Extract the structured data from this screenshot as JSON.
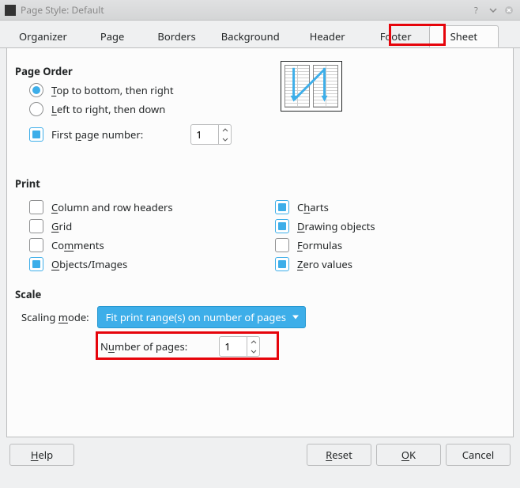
{
  "window": {
    "title": "Page Style: Default"
  },
  "tabs": [
    "Organizer",
    "Page",
    "Borders",
    "Background",
    "Header",
    "Footer",
    "Sheet"
  ],
  "active_tab": "Sheet",
  "page_order": {
    "title": "Page Order",
    "opt_tb": "op to bottom, then right",
    "opt_tb_prefix": "T",
    "opt_lr": "eft to right, then down",
    "opt_lr_prefix": "L",
    "first_page_lbl_prefix": "First ",
    "first_page_u": "p",
    "first_page_lbl_suffix": "age number:",
    "first_page_value": "1",
    "selected": "tb",
    "first_page_checked": true
  },
  "print": {
    "title": "Print",
    "left": [
      {
        "u": "C",
        "rest": "olumn and row headers",
        "checked": false,
        "name": "columns-headers"
      },
      {
        "u": "G",
        "rest": "rid",
        "checked": false,
        "name": "grid"
      },
      {
        "pre": "Co",
        "u": "m",
        "rest": "ments",
        "checked": false,
        "name": "comments"
      },
      {
        "u": "O",
        "rest": "bjects/Images",
        "checked": true,
        "name": "objects-images"
      }
    ],
    "right": [
      {
        "pre": "C",
        "u": "h",
        "rest": "arts",
        "checked": true,
        "name": "charts"
      },
      {
        "u": "D",
        "rest": "rawing objects",
        "checked": true,
        "name": "drawing-objects"
      },
      {
        "u": "F",
        "rest": "ormulas",
        "checked": false,
        "name": "formulas"
      },
      {
        "u": "Z",
        "rest": "ero values",
        "checked": true,
        "name": "zero-values"
      }
    ]
  },
  "scale": {
    "title": "Scale",
    "mode_lbl_pre": "Scaling ",
    "mode_u": "m",
    "mode_lbl_post": "ode:",
    "mode_value": "Fit print range(s) on number of pages",
    "num_pages_lbl_pre": "N",
    "num_pages_u": "u",
    "num_pages_lbl_post": "mber of pages:",
    "num_pages_value": "1"
  },
  "buttons": {
    "help_u": "H",
    "help": "elp",
    "reset_u": "R",
    "reset": "eset",
    "ok_u": "O",
    "ok": "K",
    "cancel": "Cancel"
  },
  "colors": {
    "accent": "#3daee9",
    "highlight": "#e6040b"
  }
}
